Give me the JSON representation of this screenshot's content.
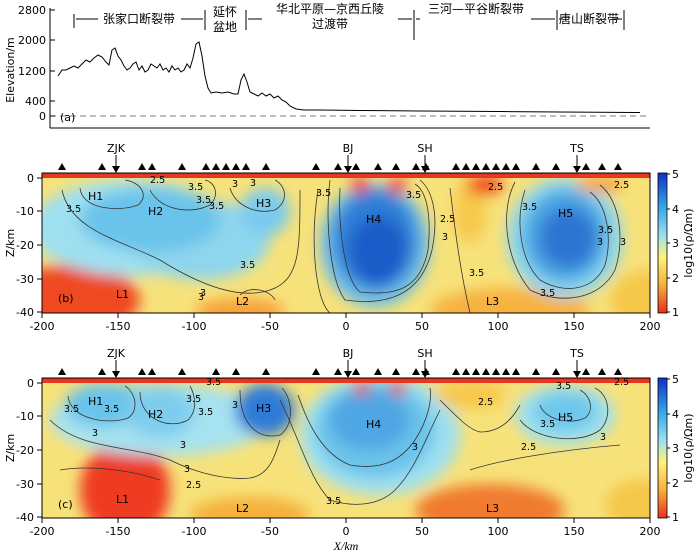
{
  "panel_a": {
    "y_label": "Elevation/m",
    "y_ticks": [
      "2800",
      "2000",
      "1200",
      "400",
      "0"
    ],
    "letter": "(a)",
    "zones": [
      {
        "label": "张家口断裂带",
        "lines": [
          "张家口断裂带"
        ]
      },
      {
        "label": "延怀盆地",
        "lines": [
          "延怀",
          "盆地"
        ]
      },
      {
        "label": "华北平原—京西丘陵过渡带",
        "lines": [
          "华北平原—京西丘陵",
          "过渡带"
        ]
      },
      {
        "label": "三河—平谷断裂带",
        "lines": [
          "三河—平谷断裂带"
        ]
      },
      {
        "label": "唐山断裂带",
        "lines": [
          "唐山断裂带"
        ]
      }
    ]
  },
  "panel_b": {
    "letter": "(b)",
    "stations": [
      "ZJK",
      "BJ",
      "SH",
      "TS"
    ],
    "body_labels": [
      "H1",
      "H2",
      "H3",
      "H4",
      "H5",
      "L1",
      "L2",
      "L3"
    ],
    "contour_labels": [
      "2.5",
      "3.5",
      "3.5",
      "3.5",
      "3",
      "3.5",
      "3.5",
      "3",
      "3",
      "3.5",
      "3.5",
      "3",
      "2.5",
      "3.5",
      "2.5",
      "3.5",
      "3",
      "3",
      "3.5",
      "3",
      "2.5",
      "3.5"
    ]
  },
  "panel_c": {
    "letter": "(c)",
    "stations": [
      "ZJK",
      "BJ",
      "SH",
      "TS"
    ],
    "body_labels": [
      "H1",
      "H2",
      "H3",
      "H4",
      "H5",
      "L1",
      "L2",
      "L3"
    ],
    "contour_labels": [
      "3.5",
      "3",
      "3.5",
      "3.5",
      "3.5",
      "3",
      "3",
      "2.5",
      "3.5",
      "3",
      "3",
      "2.5",
      "2.5",
      "3.5",
      "3.5",
      "3.5",
      "3",
      "2.5"
    ]
  },
  "axes": {
    "x_label": "X/km",
    "z_label": "Z/km",
    "x_ticks": [
      "-200",
      "-150",
      "-100",
      "-50",
      "0",
      "50",
      "100",
      "150",
      "200"
    ],
    "z_ticks": [
      "0",
      "-10",
      "-20",
      "-30",
      "-40"
    ]
  },
  "colorbar": {
    "label": "log10(ρ/Ωm)",
    "ticks": [
      "5",
      "4",
      "3",
      "2",
      "1"
    ],
    "colors": [
      "#1030c8",
      "#37a8e8",
      "#9ee0f0",
      "#fff27a",
      "#f5b13c",
      "#ea3020"
    ]
  }
}
